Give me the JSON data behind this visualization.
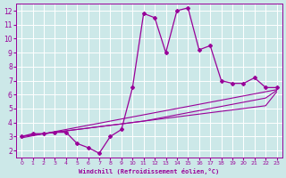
{
  "xlabel": "Windchill (Refroidissement éolien,°C)",
  "ylabel": "",
  "bg_color": "#cce8e8",
  "line_color": "#990099",
  "grid_color": "#ffffff",
  "x_data": [
    0,
    1,
    2,
    3,
    4,
    5,
    6,
    7,
    8,
    9,
    10,
    11,
    12,
    13,
    14,
    15,
    16,
    17,
    18,
    19,
    20,
    21,
    22,
    23
  ],
  "y_main": [
    3.0,
    3.2,
    3.2,
    3.3,
    3.3,
    2.5,
    2.2,
    1.8,
    3.0,
    3.5,
    6.5,
    11.8,
    11.5,
    9.0,
    12.0,
    12.2,
    9.2,
    9.5,
    7.0,
    6.8,
    6.8,
    7.2,
    6.5,
    6.5
  ],
  "y_reg1": [
    3.0,
    3.1,
    3.2,
    3.3,
    3.4,
    3.5,
    3.6,
    3.7,
    3.8,
    3.9,
    4.0,
    4.1,
    4.2,
    4.3,
    4.4,
    4.5,
    4.6,
    4.7,
    4.8,
    4.9,
    5.0,
    5.1,
    5.2,
    6.2
  ],
  "y_reg2": [
    3.0,
    3.1,
    3.2,
    3.3,
    3.4,
    3.5,
    3.6,
    3.7,
    3.8,
    3.9,
    4.0,
    4.1,
    4.25,
    4.4,
    4.55,
    4.7,
    4.85,
    5.0,
    5.15,
    5.3,
    5.45,
    5.6,
    5.75,
    6.3
  ],
  "y_reg3": [
    2.9,
    3.05,
    3.2,
    3.35,
    3.5,
    3.65,
    3.8,
    3.95,
    4.1,
    4.25,
    4.4,
    4.55,
    4.7,
    4.85,
    5.0,
    5.15,
    5.3,
    5.45,
    5.6,
    5.75,
    5.9,
    6.05,
    6.2,
    6.35
  ],
  "xlim": [
    -0.5,
    23.5
  ],
  "ylim": [
    1.5,
    12.5
  ],
  "yticks": [
    2,
    3,
    4,
    5,
    6,
    7,
    8,
    9,
    10,
    11,
    12
  ],
  "xticks": [
    0,
    1,
    2,
    3,
    4,
    5,
    6,
    7,
    8,
    9,
    10,
    11,
    12,
    13,
    14,
    15,
    16,
    17,
    18,
    19,
    20,
    21,
    22,
    23
  ]
}
